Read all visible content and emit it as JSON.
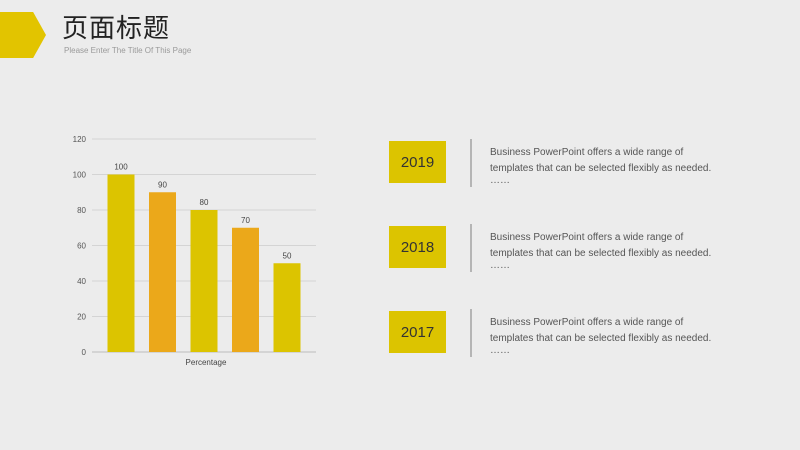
{
  "header": {
    "title": "页面标题",
    "subtitle": "Please Enter The Title Of This Page"
  },
  "colors": {
    "yellow": "#dcc400",
    "orange": "#eba81a",
    "background": "#ececec",
    "year_box": "#dcc400"
  },
  "chart_data": {
    "type": "bar",
    "categories": [
      "",
      "",
      "",
      "",
      ""
    ],
    "values": [
      100,
      90,
      80,
      70,
      50
    ],
    "bar_colors": [
      "#dcc400",
      "#eba81a",
      "#dcc400",
      "#eba81a",
      "#dcc400"
    ],
    "xlabel": "Percentage",
    "ylabel": "",
    "ylim": [
      0,
      120
    ],
    "yticks": [
      0,
      20,
      40,
      60,
      80,
      100,
      120
    ],
    "grid": true,
    "data_labels": true
  },
  "timeline": [
    {
      "year": "2019",
      "line1": "Business PowerPoint offers a wide range of",
      "line2": "templates that can be selected flexibly as needed.",
      "line3": "……"
    },
    {
      "year": "2018",
      "line1": "Business PowerPoint offers a wide range of",
      "line2": "templates that can be selected flexibly as needed.",
      "line3": "……"
    },
    {
      "year": "2017",
      "line1": "Business PowerPoint offers a wide range of",
      "line2": "templates that can be selected flexibly as needed.",
      "line3": "……"
    }
  ]
}
